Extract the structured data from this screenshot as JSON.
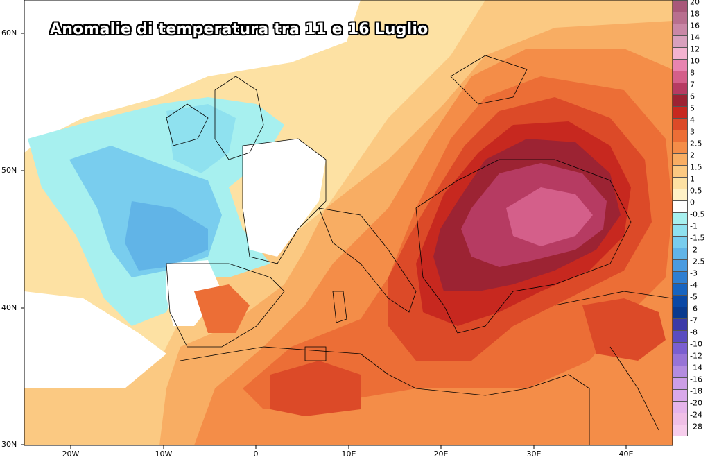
{
  "title": "Anomalie di temperatura tra 11 e 16 Luglio",
  "lat_labels": [
    "60N",
    "50N",
    "40N",
    "30N"
  ],
  "lon_labels": [
    "20W",
    "10W",
    "0",
    "10E",
    "20E",
    "30E",
    "40E"
  ],
  "scale": {
    "labels": [
      "20",
      "18",
      "16",
      "14",
      "12",
      "10",
      "8",
      "7",
      "6",
      "5",
      "4",
      "3",
      "2.5",
      "2",
      "1.5",
      "1",
      "0.5",
      "0",
      "-0.5",
      "-1",
      "-1.5",
      "-2",
      "-2.5",
      "-3",
      "-4",
      "-5",
      "-6",
      "-7",
      "-8",
      "-10",
      "-12",
      "-14",
      "-16",
      "-18",
      "-20",
      "-24",
      "-28"
    ],
    "colors": [
      "#a8587a",
      "#b86f8f",
      "#c987a6",
      "#d8a0bd",
      "#f3b3d0",
      "#e884b0",
      "#d45f8a",
      "#b63b62",
      "#9c2333",
      "#c7281f",
      "#dc4a28",
      "#ec6e36",
      "#f48d48",
      "#f8ad63",
      "#fbc982",
      "#fde1a3",
      "#fff1c6",
      "#ffffff",
      "#a7f0ef",
      "#8fe1ef",
      "#79cdee",
      "#61b4e7",
      "#4a9be0",
      "#2f7fd2",
      "#1864c0",
      "#0b48a5",
      "#0a3a8e",
      "#3c3aa8",
      "#5a4cc0",
      "#7a5fd0",
      "#9774d6",
      "#b38cdf",
      "#cc9ee6",
      "#d9a9ea",
      "#e5b4ea",
      "#efbfe6",
      "#f6cdec"
    ]
  }
}
